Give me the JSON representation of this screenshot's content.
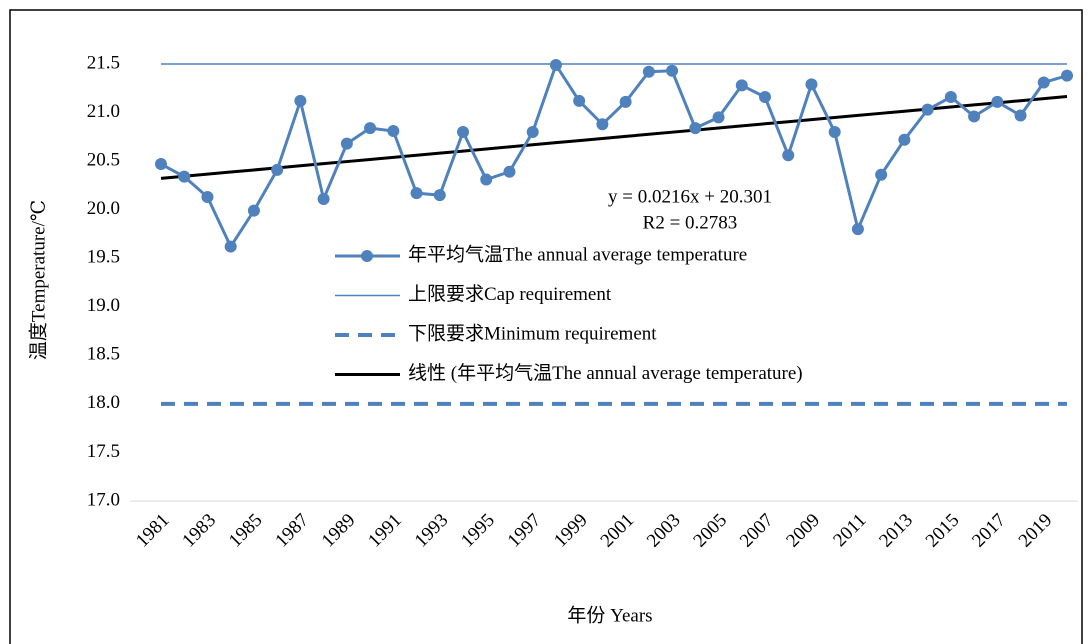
{
  "chart_data": {
    "type": "line",
    "x_label": "年份 Years",
    "y_label": "温度Temperature/℃",
    "categories": [
      "1981",
      null,
      "1983",
      null,
      "1985",
      null,
      "1987",
      null,
      "1989",
      null,
      "1991",
      null,
      "1993",
      null,
      "1995",
      null,
      "1997",
      null,
      "1999",
      null,
      "2001",
      null,
      "2003",
      null,
      "2005",
      null,
      "2007",
      null,
      "2009",
      null,
      "2011",
      null,
      "2013",
      null,
      "2015",
      null,
      "2017",
      null,
      "2019",
      null
    ],
    "series": [
      {
        "name": "年平均气温The annual average temperature",
        "color": "#4f81bd",
        "line_style": "solid",
        "markers": true,
        "values": [
          20.47,
          20.34,
          20.13,
          19.62,
          19.99,
          20.41,
          21.12,
          20.11,
          20.68,
          20.84,
          20.81,
          20.17,
          20.15,
          20.8,
          20.31,
          20.39,
          20.8,
          21.49,
          21.12,
          20.88,
          21.11,
          21.42,
          21.43,
          20.84,
          20.95,
          21.28,
          21.16,
          20.56,
          21.29,
          20.8,
          19.8,
          20.36,
          20.72,
          21.03,
          21.16,
          20.96,
          21.11,
          20.97,
          21.31,
          21.38
        ]
      },
      {
        "name": "上限要求Cap requirement",
        "color": "#4f81bd",
        "line_style": "thin",
        "markers": false,
        "values": [
          21.5,
          21.5,
          21.5,
          21.5,
          21.5,
          21.5,
          21.5,
          21.5,
          21.5,
          21.5,
          21.5,
          21.5,
          21.5,
          21.5,
          21.5,
          21.5,
          21.5,
          21.5,
          21.5,
          21.5,
          21.5,
          21.5,
          21.5,
          21.5,
          21.5,
          21.5,
          21.5,
          21.5,
          21.5,
          21.5,
          21.5,
          21.5,
          21.5,
          21.5,
          21.5,
          21.5,
          21.5,
          21.5,
          21.5,
          21.5
        ]
      },
      {
        "name": "下限要求Minimum requirement",
        "color": "#4f81bd",
        "line_style": "dashed",
        "markers": false,
        "values": [
          18,
          18,
          18,
          18,
          18,
          18,
          18,
          18,
          18,
          18,
          18,
          18,
          18,
          18,
          18,
          18,
          18,
          18,
          18,
          18,
          18,
          18,
          18,
          18,
          18,
          18,
          18,
          18,
          18,
          18,
          18,
          18,
          18,
          18,
          18,
          18,
          18,
          18,
          18,
          18
        ]
      },
      {
        "name": "线性 (年平均气温The annual average temperature)",
        "color": "#000000",
        "line_style": "thick",
        "markers": false,
        "values": [
          20.3226,
          20.3442,
          20.3658,
          20.3874,
          20.409,
          20.4306,
          20.4522,
          20.4738,
          20.4954,
          20.517,
          20.5386,
          20.5602,
          20.5818,
          20.6034,
          20.625,
          20.6466,
          20.6682,
          20.6898,
          20.7114,
          20.733,
          20.7546,
          20.7762,
          20.7978,
          20.8194,
          20.841,
          20.8626,
          20.8842,
          20.9058,
          20.9274,
          20.949,
          20.9706,
          20.9922,
          21.0138,
          21.0354,
          21.057,
          21.0786,
          21.1002,
          21.1218,
          21.1434,
          21.165
        ]
      }
    ],
    "annotations": [
      "y = 0.0216x + 20.301",
      "R2 = 0.2783"
    ],
    "ylim": [
      17,
      21.5
    ],
    "yticks": [
      {
        "value": 17,
        "label": "17.0"
      },
      17.5,
      {
        "value": 18,
        "label": "18.0"
      },
      18.5,
      {
        "value": 19,
        "label": "19.0"
      },
      19.5,
      {
        "value": 20,
        "label": "20.0"
      },
      20.5,
      {
        "value": 21,
        "label": "21.0"
      },
      21.5
    ],
    "grid": false
  }
}
